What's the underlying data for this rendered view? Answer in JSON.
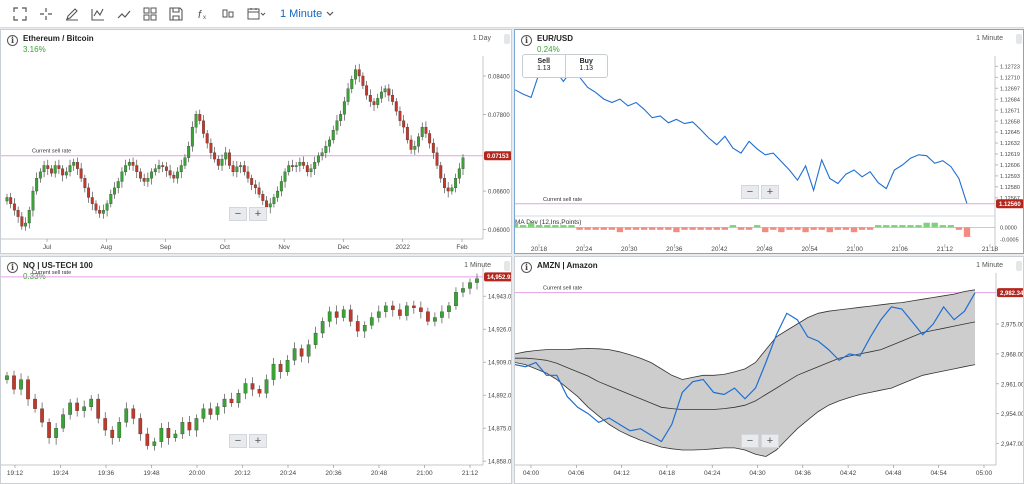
{
  "toolbar": {
    "icons": [
      "fullscreen-icon",
      "crosshair-icon",
      "draw-pencil-icon",
      "indicator-icon",
      "trend-icon",
      "layout-grid-icon",
      "save-icon",
      "function-icon",
      "chart-type-icon",
      "calendar-icon"
    ],
    "interval_label": "1 Minute"
  },
  "panels": [
    {
      "title": "Ethereum / Bitcoin",
      "change": "3.16%",
      "interval": "1 Day",
      "sell_rate_label": "Current sell rate",
      "price_tag": "0.07153",
      "y_ticks": [
        "0.08400",
        "0.07800",
        "0.06600",
        "0.06000"
      ],
      "x_ticks": [
        "Jul",
        "Aug",
        "Sep",
        "Oct",
        "Nov",
        "Dec",
        "2022",
        "Feb"
      ]
    },
    {
      "title": "EUR/USD",
      "change": "0.24%",
      "interval": "1 Minute",
      "sell_label": "Sell",
      "sell_value": "1.13",
      "buy_label": "Buy",
      "buy_value": "1.13",
      "sell_rate_label": "Current sell rate",
      "price_tag": "1.12560",
      "indicator_label": "MA Dev (12,Ins,Points)",
      "y_ticks": [
        "1.12723",
        "1.12710",
        "1.12697",
        "1.12684",
        "1.12671",
        "1.12658",
        "1.12645",
        "1.12632",
        "1.12619",
        "1.12606",
        "1.12593",
        "1.12580",
        "1.12567"
      ],
      "ind_ticks": [
        "0.0000",
        "-0.0005"
      ],
      "x_ticks": [
        "20:18",
        "20:24",
        "20:30",
        "20:36",
        "20:42",
        "20:48",
        "20:54",
        "21:00",
        "21:06",
        "21:12",
        "21:18"
      ]
    },
    {
      "title": "NQ | US-TECH 100",
      "change": "0.33%",
      "interval": "1 Minute",
      "sell_rate_label": "Current sell rate",
      "price_tag": "14,952.92",
      "y_ticks": [
        "14,943.00",
        "14,926.00",
        "14,909.00",
        "14,892.00",
        "14,875.00",
        "14,858.00"
      ],
      "x_ticks": [
        "19:12",
        "19:24",
        "19:36",
        "19:48",
        "20:00",
        "20:12",
        "20:24",
        "20:36",
        "20:48",
        "21:00",
        "21:12"
      ]
    },
    {
      "title": "AMZN | Amazon",
      "interval": "1 Minute",
      "sell_rate_label": "Current sell rate",
      "price_tag": "2,982.34",
      "y_ticks": [
        "2,975.00",
        "2,968.00",
        "2,961.00",
        "2,954.00",
        "2,947.00"
      ],
      "x_ticks": [
        "04:00",
        "04:06",
        "04:12",
        "04:18",
        "04:24",
        "04:30",
        "04:36",
        "04:42",
        "04:48",
        "04:54",
        "05:00"
      ]
    }
  ],
  "zoom": {
    "minus": "−",
    "plus": "+"
  },
  "chart_data": [
    {
      "type": "candlestick",
      "title": "Ethereum / Bitcoin",
      "x_labels": [
        "Jul",
        "Aug",
        "Sep",
        "Oct",
        "Nov",
        "Dec",
        "2022",
        "Feb"
      ],
      "ylim": [
        0.0585,
        0.0865
      ],
      "close": [
        0.065,
        0.064,
        0.063,
        0.062,
        0.0605,
        0.061,
        0.063,
        0.066,
        0.068,
        0.069,
        0.07,
        0.0695,
        0.0688,
        0.07,
        0.0695,
        0.0685,
        0.069,
        0.07,
        0.0705,
        0.0695,
        0.068,
        0.0665,
        0.065,
        0.064,
        0.063,
        0.0625,
        0.063,
        0.064,
        0.0655,
        0.0665,
        0.0675,
        0.069,
        0.07,
        0.0705,
        0.07,
        0.069,
        0.068,
        0.0675,
        0.068,
        0.069,
        0.0695,
        0.07,
        0.0698,
        0.0692,
        0.0685,
        0.068,
        0.069,
        0.07,
        0.0712,
        0.073,
        0.076,
        0.078,
        0.077,
        0.075,
        0.0735,
        0.072,
        0.071,
        0.07,
        0.071,
        0.072,
        0.07,
        0.069,
        0.0698,
        0.07,
        0.069,
        0.068,
        0.067,
        0.0665,
        0.0655,
        0.0645,
        0.0635,
        0.064,
        0.065,
        0.066,
        0.0675,
        0.069,
        0.07,
        0.0698,
        0.07,
        0.0705,
        0.07,
        0.069,
        0.0695,
        0.0705,
        0.0715,
        0.072,
        0.073,
        0.074,
        0.0755,
        0.077,
        0.078,
        0.08,
        0.082,
        0.0835,
        0.085,
        0.084,
        0.0825,
        0.081,
        0.08,
        0.0795,
        0.0805,
        0.0815,
        0.082,
        0.081,
        0.08,
        0.0785,
        0.077,
        0.076,
        0.074,
        0.0725,
        0.073,
        0.0745,
        0.076,
        0.075,
        0.0735,
        0.072,
        0.07,
        0.068,
        0.0665,
        0.066,
        0.0665,
        0.068,
        0.0695,
        0.0712
      ],
      "current_sell_rate": 0.07153
    },
    {
      "type": "line",
      "title": "EUR/USD",
      "x_labels": [
        "20:18",
        "20:24",
        "20:30",
        "20:36",
        "20:42",
        "20:48",
        "20:54",
        "21:00",
        "21:06",
        "21:12",
        "21:18"
      ],
      "ylim": [
        1.12555,
        1.12728
      ],
      "values": [
        1.12695,
        1.1269,
        1.12686,
        1.12715,
        1.12728,
        1.12718,
        1.12705,
        1.12718,
        1.1271,
        1.12698,
        1.12692,
        1.12684,
        1.1268,
        1.12684,
        1.12676,
        1.1268,
        1.12672,
        1.12662,
        1.12664,
        1.12656,
        1.1266,
        1.12655,
        1.12657,
        1.12648,
        1.12638,
        1.1263,
        1.1264,
        1.12626,
        1.1262,
        1.12634,
        1.12625,
        1.12618,
        1.1262,
        1.1261,
        1.126,
        1.12588,
        1.12605,
        1.12576,
        1.12612,
        1.1259,
        1.12584,
        1.12595,
        1.126,
        1.12592,
        1.12598,
        1.12585,
        1.12578,
        1.126,
        1.12606,
        1.12614,
        1.12618,
        1.12617,
        1.12608,
        1.12611,
        1.12604,
        1.1259,
        1.1256
      ],
      "indicator": {
        "name": "MA Dev (12,Ins,Points)",
        "ylim": [
          -0.0007,
          0.0004
        ],
        "values": [
          0.0002,
          0.0001,
          0.0002,
          0.0001,
          0.0001,
          0.0001,
          0.0001,
          0.0001,
          -0.0001,
          -0.0001,
          -0.0001,
          -0.0001,
          -0.0001,
          -0.0002,
          -0.0001,
          -0.0001,
          -0.0001,
          -0.0001,
          -0.0001,
          -0.0001,
          -0.0002,
          -0.0001,
          -0.0001,
          -0.0001,
          -0.0001,
          -0.0001,
          -0.0001,
          0.0001,
          -0.0001,
          -0.0001,
          0.0001,
          -0.0002,
          -0.0001,
          -0.0002,
          -0.0001,
          -0.0001,
          -0.0002,
          -0.0001,
          -0.0001,
          -0.0002,
          -0.0001,
          -0.0001,
          -0.0002,
          -0.0001,
          -0.0001,
          0.0001,
          0.0001,
          0.0001,
          0.0001,
          0.0001,
          0.0001,
          0.0002,
          0.0002,
          0.0001,
          0.0001,
          -0.0001,
          -0.0004
        ]
      },
      "current_sell_rate": 1.1256
    },
    {
      "type": "candlestick",
      "title": "NQ | US-TECH 100",
      "x_labels": [
        "19:12",
        "19:24",
        "19:36",
        "19:48",
        "20:00",
        "20:12",
        "20:24",
        "20:36",
        "20:48",
        "21:00",
        "21:12"
      ],
      "ylim": [
        14856,
        14957
      ],
      "close": [
        14902,
        14895,
        14900,
        14890,
        14885,
        14878,
        14870,
        14875,
        14882,
        14888,
        14884,
        14886,
        14890,
        14880,
        14874,
        14870,
        14878,
        14885,
        14880,
        14872,
        14866,
        14868,
        14875,
        14870,
        14872,
        14878,
        14874,
        14880,
        14885,
        14882,
        14886,
        14890,
        14888,
        14893,
        14898,
        14895,
        14893,
        14900,
        14908,
        14904,
        14910,
        14916,
        14912,
        14918,
        14924,
        14930,
        14935,
        14932,
        14936,
        14930,
        14925,
        14928,
        14932,
        14935,
        14938,
        14936,
        14933,
        14938,
        14937,
        14935,
        14930,
        14932,
        14935,
        14938,
        14945,
        14947,
        14950,
        14952
      ],
      "current_sell_rate": 14952.92
    },
    {
      "type": "line",
      "title": "AMZN | Amazon",
      "x_labels": [
        "04:00",
        "04:06",
        "04:12",
        "04:18",
        "04:24",
        "04:30",
        "04:36",
        "04:42",
        "04:48",
        "04:54",
        "05:00"
      ],
      "ylim": [
        2942,
        2986
      ],
      "series": [
        {
          "role": "price",
          "values": [
            2965.5,
            2965.0,
            2966.0,
            2963.0,
            2963.0,
            2958.0,
            2955.5,
            2954.0,
            2952.0,
            2953.0,
            2951.5,
            2950.0,
            2950.5,
            2949.0,
            2947.5,
            2951.5,
            2959.0,
            2961.5,
            2962.0,
            2959.0,
            2958.5,
            2960.0,
            2957.5,
            2960.0,
            2966.0,
            2972.5,
            2977.5,
            2976.0,
            2972.0,
            2971.0,
            2969.0,
            2966.5,
            2968.0,
            2967.5,
            2972.0,
            2976.0,
            2979.0,
            2978.5,
            2975.5,
            2972.5,
            2975.0,
            2979.0,
            2976.0,
            2978.0,
            2982.3
          ]
        },
        {
          "role": "middle",
          "values": [
            2967.0,
            2967.0,
            2966.8,
            2966.5,
            2965.8,
            2964.8,
            2963.8,
            2962.8,
            2961.5,
            2960.5,
            2959.5,
            2958.5,
            2957.5,
            2956.5,
            2955.5,
            2955.2,
            2955.0,
            2955.0,
            2955.0,
            2955.0,
            2955.2,
            2955.5,
            2956.0,
            2957.0,
            2958.5,
            2960.0,
            2961.5,
            2963.0,
            2964.0,
            2965.0,
            2966.0,
            2967.0,
            2967.5,
            2968.0,
            2968.5,
            2969.0,
            2970.0,
            2971.0,
            2972.0,
            2973.0,
            2973.5,
            2974.0,
            2974.5,
            2975.0,
            2975.5
          ]
        },
        {
          "role": "upper",
          "values": [
            2968.0,
            2968.5,
            2968.8,
            2969.0,
            2969.0,
            2969.0,
            2969.2,
            2969.3,
            2969.2,
            2969.0,
            2968.5,
            2967.8,
            2967.0,
            2966.0,
            2964.5,
            2963.0,
            2962.0,
            2962.5,
            2963.0,
            2963.0,
            2963.2,
            2963.8,
            2964.5,
            2966.0,
            2969.0,
            2972.0,
            2973.5,
            2975.0,
            2976.5,
            2977.5,
            2978.0,
            2978.3,
            2978.6,
            2978.9,
            2979.2,
            2979.5,
            2979.8,
            2980.0,
            2980.4,
            2980.8,
            2981.2,
            2981.6,
            2982.0,
            2982.6,
            2983.0
          ]
        },
        {
          "role": "lower",
          "values": [
            2966.0,
            2965.5,
            2964.5,
            2963.5,
            2962.0,
            2960.0,
            2958.0,
            2955.5,
            2953.5,
            2951.5,
            2950.0,
            2948.8,
            2947.8,
            2947.0,
            2946.2,
            2945.8,
            2945.5,
            2945.5,
            2945.6,
            2945.8,
            2946.0,
            2946.0,
            2945.5,
            2944.5,
            2944.0,
            2945.5,
            2948.0,
            2950.5,
            2952.5,
            2954.5,
            2956.0,
            2957.0,
            2957.8,
            2958.5,
            2959.0,
            2959.5,
            2960.0,
            2961.0,
            2962.0,
            2963.0,
            2963.5,
            2964.0,
            2964.5,
            2965.0,
            2965.5
          ]
        }
      ],
      "current_sell_rate": 2982.34
    }
  ],
  "colors": {
    "accent": "#1565c0",
    "line": "#1f6fd1",
    "up": "#3aa335",
    "down": "#c0392b",
    "sell_rate_line": "#e6a1e6",
    "price_tag": "#b3261e",
    "band_fill": "#c8c8c8"
  }
}
